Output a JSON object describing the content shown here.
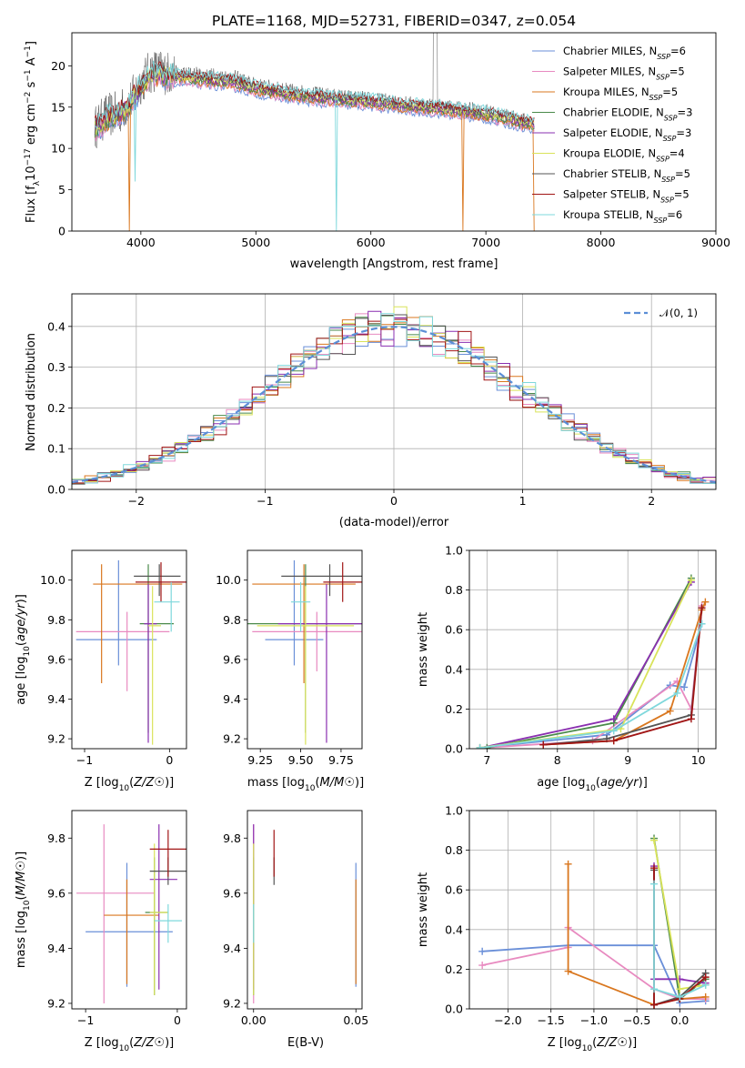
{
  "title": "PLATE=1168, MJD=52731, FIBERID=0347, z=0.054",
  "colors": [
    "#6a8fd8",
    "#e88ac0",
    "#d9771f",
    "#4a8a4a",
    "#8a2fb0",
    "#d9e35a",
    "#555555",
    "#a11515",
    "#7fd8dc"
  ],
  "chart_data": [
    {
      "name": "spectrum",
      "type": "line",
      "xlabel": "wavelength [Angstrom, rest frame]",
      "ylabel": "Flux [f_λ 10^-17 erg cm^-2 s^-1 A^-1]",
      "ylabel_parts": {
        "main": "Flux [f",
        "sub1": "λ",
        "mid": "10",
        "sup1": "−17",
        "rest": " erg cm",
        "sup2": "−2",
        "rest2": " s",
        "sup3": "−1",
        "rest3": " A",
        "sup4": "−1",
        "end": "]"
      },
      "xlim": [
        3400,
        9000
      ],
      "ylim": [
        0,
        24
      ],
      "xticks": [
        4000,
        5000,
        6000,
        7000,
        8000,
        9000
      ],
      "yticks": [
        0,
        5,
        10,
        15,
        20
      ],
      "legend_placement": "top-right",
      "legend": [
        {
          "label": "Chabrier MILES, N",
          "sub": "SSP",
          "suffix": "=6"
        },
        {
          "label": "Salpeter MILES, N",
          "sub": "SSP",
          "suffix": "=5"
        },
        {
          "label": "Kroupa MILES, N",
          "sub": "SSP",
          "suffix": "=5"
        },
        {
          "label": "Chabrier ELODIE, N",
          "sub": "SSP",
          "suffix": "=3"
        },
        {
          "label": "Salpeter ELODIE, N",
          "sub": "SSP",
          "suffix": "=3"
        },
        {
          "label": "Kroupa ELODIE, N",
          "sub": "SSP",
          "suffix": "=4"
        },
        {
          "label": "Chabrier STELIB, N",
          "sub": "SSP",
          "suffix": "=5"
        },
        {
          "label": "Salpeter STELIB, N",
          "sub": "SSP",
          "suffix": "=5"
        },
        {
          "label": "Kroupa STELIB, N",
          "sub": "SSP",
          "suffix": "=6"
        }
      ],
      "data_trend": {
        "x": [
          3600,
          3700,
          3800,
          3900,
          4000,
          4100,
          4300,
          4500,
          4800,
          5000,
          5300,
          5600,
          6000,
          6300,
          6600,
          7000,
          7400
        ],
        "y": [
          12.5,
          14,
          14.2,
          15.5,
          18,
          19.5,
          19,
          18.8,
          18.5,
          17.5,
          16.8,
          16.3,
          15.8,
          15.3,
          15,
          14.3,
          13
        ]
      },
      "model_trend": {
        "x": [
          3600,
          3700,
          3800,
          3900,
          4000,
          4100,
          4300,
          4500,
          4800,
          5000,
          5300,
          5600,
          6000,
          6300,
          6600,
          7000,
          7400
        ],
        "y": [
          12.3,
          13.5,
          14.0,
          15.2,
          17.5,
          19.0,
          18.6,
          18.3,
          18.0,
          17.2,
          16.5,
          16.0,
          15.6,
          15.1,
          14.8,
          14.1,
          12.9
        ]
      }
    },
    {
      "name": "residuals",
      "type": "histogram",
      "xlabel": "(data-model)/error",
      "ylabel": "Normed distribution",
      "xlim": [
        -2.5,
        2.5
      ],
      "ylim": [
        0,
        0.48
      ],
      "xticks": [
        -2,
        -1,
        0,
        1,
        2
      ],
      "yticks": [
        0,
        0.1,
        0.2,
        0.3,
        0.4
      ],
      "grid": true,
      "legend_placement": "top-right",
      "legend_label": "𝒩(0, 1)",
      "bin_width": 0.1,
      "bin_start": -2.5
    },
    {
      "name": "age-vs-Z",
      "type": "errorbar",
      "xlabel": "Z [log10(Z/Z☉)]",
      "ylabel": "age  [log10(age/yr)]",
      "xlim": [
        -1.15,
        0.2
      ],
      "ylim": [
        9.15,
        10.15
      ],
      "xticks": [
        -1,
        0
      ],
      "yticks": [
        9.2,
        9.4,
        9.6,
        9.8,
        10.0
      ],
      "points": [
        {
          "x": -0.6,
          "y": 9.7,
          "xerr": [
            0.5,
            0.45
          ],
          "yerr": [
            0.13,
            0.4
          ]
        },
        {
          "x": -0.5,
          "y": 9.74,
          "xerr": [
            0.6,
            0.5
          ],
          "yerr": [
            0.3,
            0.1
          ]
        },
        {
          "x": -0.8,
          "y": 9.98,
          "xerr": [
            0.1,
            0.95
          ],
          "yerr": [
            0.5,
            0.1
          ]
        },
        {
          "x": -0.25,
          "y": 9.78,
          "xerr": [
            0.1,
            0.3
          ],
          "yerr": [
            0.55,
            0.3
          ]
        },
        {
          "x": -0.25,
          "y": 9.78,
          "xerr": [
            0.05,
            0.1
          ],
          "yerr": [
            0.6,
            0.2
          ]
        },
        {
          "x": -0.2,
          "y": 9.77,
          "xerr": [
            0.05,
            0.1
          ],
          "yerr": [
            0.6,
            0.2
          ]
        },
        {
          "x": -0.12,
          "y": 10.02,
          "xerr": [
            0.3,
            0.25
          ],
          "yerr": [
            0.1,
            0.06
          ]
        },
        {
          "x": -0.1,
          "y": 9.99,
          "xerr": [
            0.3,
            0.3
          ],
          "yerr": [
            0.1,
            0.1
          ]
        },
        {
          "x": 0.02,
          "y": 9.89,
          "xerr": [
            0.2,
            0.1
          ],
          "yerr": [
            0.15,
            0.1
          ]
        }
      ]
    },
    {
      "name": "age-vs-mass",
      "type": "errorbar",
      "xlabel": "mass [log10(M/M☉)]",
      "ylabel": "",
      "xlim": [
        9.17,
        9.88
      ],
      "ylim": [
        9.15,
        10.15
      ],
      "xticks": [
        9.25,
        9.5,
        9.75
      ],
      "yticks": [
        9.2,
        9.4,
        9.6,
        9.8,
        10.0
      ],
      "points": [
        {
          "x": 9.46,
          "y": 9.7,
          "xerr": [
            0.18,
            0.18
          ],
          "yerr": [
            0.13,
            0.4
          ]
        },
        {
          "x": 9.6,
          "y": 9.74,
          "xerr": [
            0.4,
            0.4
          ],
          "yerr": [
            0.2,
            0.1
          ]
        },
        {
          "x": 9.52,
          "y": 9.98,
          "xerr": [
            0.32,
            0.32
          ],
          "yerr": [
            0.5,
            0.1
          ]
        },
        {
          "x": 9.53,
          "y": 9.78,
          "xerr": [
            0.36,
            0.36
          ],
          "yerr": [
            0.55,
            0.3
          ]
        },
        {
          "x": 9.66,
          "y": 9.78,
          "xerr": [
            0.3,
            0.3
          ],
          "yerr": [
            0.6,
            0.2
          ]
        },
        {
          "x": 9.53,
          "y": 9.77,
          "xerr": [
            0.3,
            0.3
          ],
          "yerr": [
            0.6,
            0.2
          ]
        },
        {
          "x": 9.68,
          "y": 10.02,
          "xerr": [
            0.3,
            0.3
          ],
          "yerr": [
            0.1,
            0.06
          ]
        },
        {
          "x": 9.76,
          "y": 9.99,
          "xerr": [
            0.12,
            0.12
          ],
          "yerr": [
            0.1,
            0.1
          ]
        },
        {
          "x": 9.5,
          "y": 9.89,
          "xerr": [
            0.06,
            0.06
          ],
          "yerr": [
            0.15,
            0.1
          ]
        }
      ]
    },
    {
      "name": "weight-vs-age",
      "type": "line",
      "xlabel": "age  [log10(age/yr)]",
      "ylabel": "mass weight",
      "xlim": [
        6.75,
        10.25
      ],
      "ylim": [
        0,
        1
      ],
      "xticks": [
        7,
        8,
        9,
        10
      ],
      "yticks": [
        0,
        0.2,
        0.4,
        0.6,
        0.8,
        1.0
      ],
      "grid": true,
      "series": [
        {
          "x": [
            6.9,
            8.7,
            9.6,
            9.8,
            10.05
          ],
          "y": [
            0.005,
            0.07,
            0.32,
            0.31,
            0.63
          ]
        },
        {
          "x": [
            6.9,
            8.5,
            9.7,
            9.9,
            10.05
          ],
          "y": [
            0.003,
            0.04,
            0.34,
            0.2,
            0.72
          ]
        },
        {
          "x": [
            7.8,
            8.8,
            9.6,
            10.05,
            10.1
          ],
          "y": [
            0.02,
            0.04,
            0.19,
            0.7,
            0.74
          ]
        },
        {
          "x": [
            7.0,
            8.8,
            9.9
          ],
          "y": [
            0.005,
            0.13,
            0.86
          ]
        },
        {
          "x": [
            6.9,
            8.8,
            9.9
          ],
          "y": [
            0.003,
            0.15,
            0.84
          ]
        },
        {
          "x": [
            6.9,
            8.9,
            9.9
          ],
          "y": [
            0.005,
            0.1,
            0.85
          ]
        },
        {
          "x": [
            7.8,
            8.7,
            9.9,
            10.05
          ],
          "y": [
            0.02,
            0.05,
            0.17,
            0.71
          ]
        },
        {
          "x": [
            7.8,
            8.8,
            9.9,
            10.05
          ],
          "y": [
            0.02,
            0.04,
            0.15,
            0.71
          ]
        },
        {
          "x": [
            6.9,
            8.8,
            9.7,
            10.05
          ],
          "y": [
            0.004,
            0.09,
            0.28,
            0.63
          ]
        }
      ]
    },
    {
      "name": "mass-vs-Z",
      "type": "errorbar",
      "xlabel": "Z [log10(Z/Z☉)]",
      "ylabel": "mass [log10(M/M☉)]",
      "xlim": [
        -1.15,
        0.1
      ],
      "ylim": [
        9.18,
        9.9
      ],
      "xticks": [
        -1,
        0
      ],
      "yticks": [
        9.2,
        9.4,
        9.6,
        9.8
      ],
      "points": [
        {
          "x": -0.55,
          "y": 9.46,
          "xerr": [
            0.45,
            0.5
          ],
          "yerr": [
            0.2,
            0.25
          ]
        },
        {
          "x": -0.8,
          "y": 9.6,
          "xerr": [
            0.3,
            0.55
          ],
          "yerr": [
            0.4,
            0.25
          ]
        },
        {
          "x": -0.55,
          "y": 9.52,
          "xerr": [
            0.25,
            0.35
          ],
          "yerr": [
            0.25,
            0.13
          ]
        },
        {
          "x": -0.25,
          "y": 9.53,
          "xerr": [
            0.1,
            0.15
          ],
          "yerr": [
            0.3,
            0.2
          ]
        },
        {
          "x": -0.2,
          "y": 9.65,
          "xerr": [
            0.1,
            0.2
          ],
          "yerr": [
            0.4,
            0.2
          ]
        },
        {
          "x": -0.25,
          "y": 9.53,
          "xerr": [
            0.05,
            0.15
          ],
          "yerr": [
            0.3,
            0.25
          ]
        },
        {
          "x": -0.1,
          "y": 9.68,
          "xerr": [
            0.2,
            0.2
          ],
          "yerr": [
            0.05,
            0.05
          ]
        },
        {
          "x": -0.1,
          "y": 9.76,
          "xerr": [
            0.2,
            0.3
          ],
          "yerr": [
            0.1,
            0.07
          ]
        },
        {
          "x": -0.1,
          "y": 9.5,
          "xerr": [
            0.15,
            0.15
          ],
          "yerr": [
            0.08,
            0.06
          ]
        }
      ]
    },
    {
      "name": "mass-vs-EBV",
      "type": "errorbar",
      "xlabel": "E(B-V)",
      "ylabel": "",
      "xlim": [
        -0.003,
        0.053
      ],
      "ylim": [
        9.18,
        9.9
      ],
      "xticks": [
        0,
        0.05
      ],
      "yticks": [
        9.2,
        9.4,
        9.6,
        9.8
      ],
      "points": [
        {
          "x": 0.05,
          "y": 9.46,
          "xerr": [
            0,
            0
          ],
          "yerr": [
            0.2,
            0.25
          ]
        },
        {
          "x": 0.0,
          "y": 9.6,
          "xerr": [
            0,
            0
          ],
          "yerr": [
            0.4,
            0.25
          ]
        },
        {
          "x": 0.05,
          "y": 9.52,
          "xerr": [
            0,
            0
          ],
          "yerr": [
            0.25,
            0.13
          ]
        },
        {
          "x": 0.0,
          "y": 9.53,
          "xerr": [
            0,
            0
          ],
          "yerr": [
            0.3,
            0.2
          ]
        },
        {
          "x": 0.0,
          "y": 9.65,
          "xerr": [
            0,
            0
          ],
          "yerr": [
            0.4,
            0.2
          ]
        },
        {
          "x": 0.0,
          "y": 9.53,
          "xerr": [
            0,
            0
          ],
          "yerr": [
            0.3,
            0.25
          ]
        },
        {
          "x": 0.01,
          "y": 9.68,
          "xerr": [
            0,
            0
          ],
          "yerr": [
            0.05,
            0.05
          ]
        },
        {
          "x": 0.01,
          "y": 9.76,
          "xerr": [
            0,
            0
          ],
          "yerr": [
            0.1,
            0.07
          ]
        },
        {
          "x": 0.0,
          "y": 9.5,
          "xerr": [
            0,
            0
          ],
          "yerr": [
            0.08,
            0.06
          ]
        }
      ]
    },
    {
      "name": "weight-vs-Z",
      "type": "line",
      "xlabel": "Z [log10(Z/Z☉)]",
      "ylabel": "mass weight",
      "xlim": [
        -2.45,
        0.42
      ],
      "ylim": [
        0,
        1
      ],
      "xticks": [
        -2.0,
        -1.5,
        -1.0,
        -0.5,
        0.0
      ],
      "yticks": [
        0,
        0.2,
        0.4,
        0.6,
        0.8,
        1.0
      ],
      "grid": true,
      "series": [
        {
          "x": [
            -2.3,
            -1.3,
            -0.3,
            0.0,
            0.3
          ],
          "y": [
            0.29,
            0.32,
            0.32,
            0.03,
            0.04
          ]
        },
        {
          "x": [
            -2.3,
            -1.3,
            -1.3,
            -0.3,
            0.0,
            0.3
          ],
          "y": [
            0.22,
            0.31,
            0.41,
            0.1,
            0.05,
            0.05
          ]
        },
        {
          "x": [
            -1.3,
            -1.3,
            -0.3,
            0.0,
            0.3
          ],
          "y": [
            0.73,
            0.19,
            0.02,
            0.05,
            0.06
          ]
        },
        {
          "x": [
            -0.3,
            0.0,
            0.3
          ],
          "y": [
            0.86,
            0.05,
            0.15
          ]
        },
        {
          "x": [
            -0.3,
            -0.3,
            0.0,
            0.3
          ],
          "y": [
            0.72,
            0.15,
            0.15,
            0.13
          ]
        },
        {
          "x": [
            -0.3,
            0.0,
            0.3
          ],
          "y": [
            0.85,
            0.1,
            0.12
          ]
        },
        {
          "x": [
            -0.3,
            -0.3,
            0.0,
            0.3
          ],
          "y": [
            0.7,
            0.02,
            0.06,
            0.18
          ]
        },
        {
          "x": [
            -0.3,
            -0.3,
            0.0,
            0.3
          ],
          "y": [
            0.71,
            0.02,
            0.05,
            0.16
          ]
        },
        {
          "x": [
            -0.3,
            -0.3,
            0.0,
            0.3
          ],
          "y": [
            0.63,
            0.1,
            0.06,
            0.12
          ]
        }
      ]
    }
  ]
}
